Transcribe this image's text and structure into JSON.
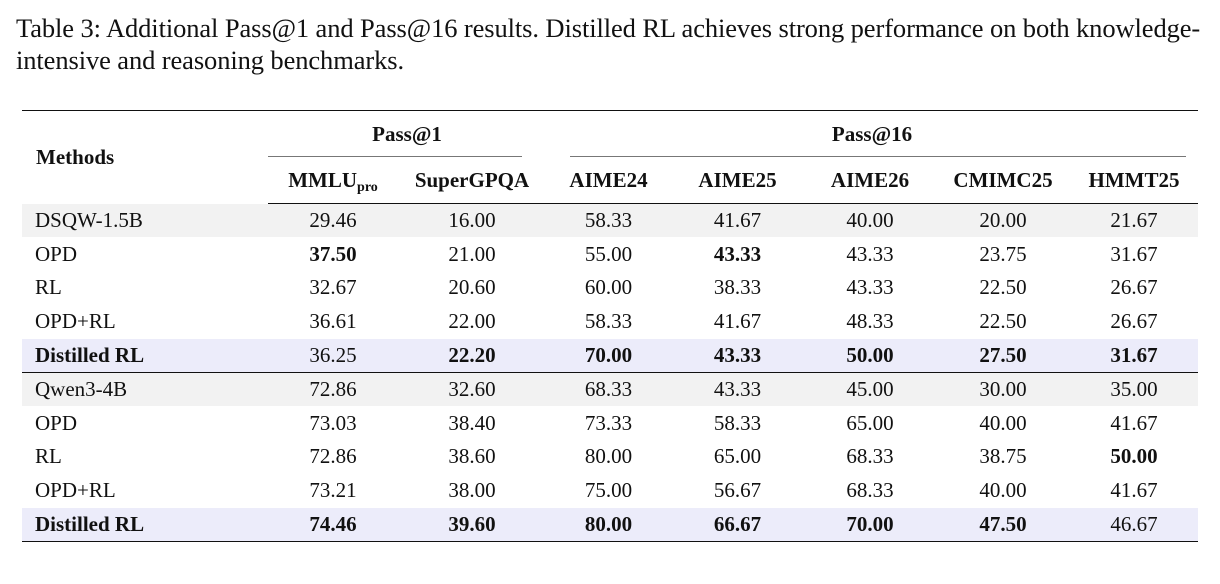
{
  "caption": "Table 3: Additional Pass@1 and Pass@16 results. Distilled RL achieves strong performance on both knowledge-intensive and reasoning benchmarks.",
  "table": {
    "method_header": "Methods",
    "groups": [
      {
        "label": "Pass@1"
      },
      {
        "label": "Pass@16"
      }
    ],
    "columns": [
      {
        "base": "MMLU",
        "sub": "pro"
      },
      {
        "base": "SuperGPQA",
        "sub": ""
      },
      {
        "base": "AIME24",
        "sub": ""
      },
      {
        "base": "AIME25",
        "sub": ""
      },
      {
        "base": "AIME26",
        "sub": ""
      },
      {
        "base": "CMIMC25",
        "sub": ""
      },
      {
        "base": "HMMT25",
        "sub": ""
      }
    ],
    "rows": [
      {
        "method": "DSQW-1.5B",
        "values": [
          "29.46",
          "16.00",
          "58.33",
          "41.67",
          "40.00",
          "20.00",
          "21.67"
        ],
        "bold": [
          false,
          false,
          false,
          false,
          false,
          false,
          false
        ],
        "style": "shaded",
        "method_bold": false
      },
      {
        "method": "OPD",
        "values": [
          "37.50",
          "21.00",
          "55.00",
          "43.33",
          "43.33",
          "23.75",
          "31.67"
        ],
        "bold": [
          true,
          false,
          false,
          true,
          false,
          false,
          false
        ],
        "style": "",
        "method_bold": false
      },
      {
        "method": "RL",
        "values": [
          "32.67",
          "20.60",
          "60.00",
          "38.33",
          "43.33",
          "22.50",
          "26.67"
        ],
        "bold": [
          false,
          false,
          false,
          false,
          false,
          false,
          false
        ],
        "style": "",
        "method_bold": false
      },
      {
        "method": "OPD+RL",
        "values": [
          "36.61",
          "22.00",
          "58.33",
          "41.67",
          "48.33",
          "22.50",
          "26.67"
        ],
        "bold": [
          false,
          false,
          false,
          false,
          false,
          false,
          false
        ],
        "style": "",
        "method_bold": false
      },
      {
        "method": "Distilled RL",
        "values": [
          "36.25",
          "22.20",
          "70.00",
          "43.33",
          "50.00",
          "27.50",
          "31.67"
        ],
        "bold": [
          false,
          true,
          true,
          true,
          true,
          true,
          true
        ],
        "style": "highlight",
        "method_bold": true
      },
      {
        "method": "Qwen3-4B",
        "values": [
          "72.86",
          "32.60",
          "68.33",
          "43.33",
          "45.00",
          "30.00",
          "35.00"
        ],
        "bold": [
          false,
          false,
          false,
          false,
          false,
          false,
          false
        ],
        "style": "shaded",
        "method_bold": false,
        "group_start": true
      },
      {
        "method": "OPD",
        "values": [
          "73.03",
          "38.40",
          "73.33",
          "58.33",
          "65.00",
          "40.00",
          "41.67"
        ],
        "bold": [
          false,
          false,
          false,
          false,
          false,
          false,
          false
        ],
        "style": "",
        "method_bold": false
      },
      {
        "method": "RL",
        "values": [
          "72.86",
          "38.60",
          "80.00",
          "65.00",
          "68.33",
          "38.75",
          "50.00"
        ],
        "bold": [
          false,
          false,
          false,
          false,
          false,
          false,
          true
        ],
        "style": "",
        "method_bold": false
      },
      {
        "method": "OPD+RL",
        "values": [
          "73.21",
          "38.00",
          "75.00",
          "56.67",
          "68.33",
          "40.00",
          "41.67"
        ],
        "bold": [
          false,
          false,
          false,
          false,
          false,
          false,
          false
        ],
        "style": "",
        "method_bold": false
      },
      {
        "method": "Distilled RL",
        "values": [
          "74.46",
          "39.60",
          "80.00",
          "66.67",
          "70.00",
          "47.50",
          "46.67"
        ],
        "bold": [
          true,
          true,
          true,
          true,
          true,
          true,
          false
        ],
        "style": "highlight",
        "method_bold": true,
        "last": true
      }
    ]
  }
}
